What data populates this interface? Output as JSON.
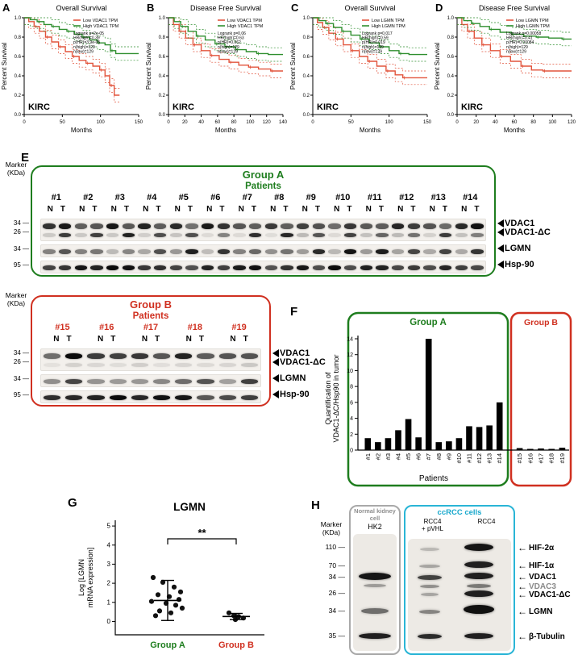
{
  "colors": {
    "low_tpm": "#e2543c",
    "high_tpm": "#2f8f2f",
    "group_a": "#1e7d1e",
    "group_b": "#d03020",
    "ccrcc_accent": "#2ab5d6",
    "normal_accent": "#8f8f8f",
    "band": "#0a0a0a"
  },
  "chart_data": [
    {
      "id": "A",
      "type": "line",
      "subtype": "kaplan-meier",
      "letter": "A",
      "title": "Overall Survival",
      "xlabel": "Months",
      "ylabel": "Percent Survival",
      "annotation": "KIRC",
      "xlim": [
        0,
        150
      ],
      "ylim": [
        0,
        1
      ],
      "xticks": [
        0,
        50,
        100,
        150
      ],
      "stats": [
        "Logrank p=2e-05",
        "HR(high)=0.39",
        "p(HR)=3.9e-05",
        "n(high)=129",
        "n(low)=129"
      ],
      "series": [
        {
          "name": "Low VDAC1 TPM",
          "color": "#e2543c",
          "x": [
            0,
            6,
            13,
            20,
            28,
            36,
            45,
            54,
            63,
            72,
            81,
            90,
            99,
            106,
            112,
            118,
            125
          ],
          "y": [
            1,
            0.96,
            0.91,
            0.86,
            0.8,
            0.75,
            0.7,
            0.65,
            0.6,
            0.56,
            0.53,
            0.5,
            0.46,
            0.4,
            0.3,
            0.2,
            0.2
          ]
        },
        {
          "name": "High VDAC1 TPM",
          "color": "#2f8f2f",
          "x": [
            0,
            8,
            17,
            26,
            36,
            46,
            56,
            66,
            76,
            86,
            96,
            106,
            113,
            120,
            150
          ],
          "y": [
            1,
            0.98,
            0.96,
            0.93,
            0.91,
            0.88,
            0.86,
            0.83,
            0.8,
            0.77,
            0.74,
            0.72,
            0.66,
            0.63,
            0.63
          ]
        }
      ]
    },
    {
      "id": "B",
      "type": "line",
      "subtype": "kaplan-meier",
      "letter": "B",
      "title": "Disease Free Survival",
      "xlabel": "Months",
      "ylabel": "Percent Survival",
      "annotation": "KIRC",
      "xlim": [
        0,
        140
      ],
      "ylim": [
        0,
        1
      ],
      "xticks": [
        0,
        20,
        40,
        60,
        80,
        100,
        120,
        140
      ],
      "stats": [
        "Logrank p=0.06",
        "HR(high)=0.63",
        "p(HR)=0.062",
        "n(high)=129",
        "n(low)=129"
      ],
      "series": [
        {
          "name": "Low VDAC1 TPM",
          "color": "#e2543c",
          "x": [
            0,
            6,
            13,
            21,
            30,
            40,
            51,
            62,
            74,
            86,
            98,
            110,
            125,
            140
          ],
          "y": [
            1,
            0.93,
            0.86,
            0.79,
            0.72,
            0.66,
            0.61,
            0.57,
            0.54,
            0.51,
            0.49,
            0.47,
            0.45,
            0.45
          ]
        },
        {
          "name": "High VDAC1 TPM",
          "color": "#2f8f2f",
          "x": [
            0,
            7,
            15,
            24,
            34,
            45,
            57,
            69,
            82,
            95,
            108,
            122,
            140
          ],
          "y": [
            1,
            0.96,
            0.91,
            0.86,
            0.81,
            0.77,
            0.73,
            0.7,
            0.67,
            0.65,
            0.63,
            0.62,
            0.62
          ]
        }
      ]
    },
    {
      "id": "C",
      "type": "line",
      "subtype": "kaplan-meier",
      "letter": "C",
      "title": "Overall Survival",
      "xlabel": "Months",
      "ylabel": "Percent Survival",
      "annotation": "KIRC",
      "xlim": [
        0,
        150
      ],
      "ylim": [
        0,
        1
      ],
      "xticks": [
        0,
        50,
        100,
        150
      ],
      "stats": [
        "Logrank p=0.017",
        "HR(high)=0.59",
        "p(HR)=0.019",
        "n(high)=129",
        "n(low)=129"
      ],
      "series": [
        {
          "name": "Low LGMN TPM",
          "color": "#e2543c",
          "x": [
            0,
            6,
            13,
            21,
            30,
            40,
            50,
            61,
            72,
            84,
            96,
            108,
            118,
            128,
            150
          ],
          "y": [
            1,
            0.95,
            0.9,
            0.84,
            0.78,
            0.72,
            0.66,
            0.6,
            0.55,
            0.5,
            0.45,
            0.41,
            0.38,
            0.38,
            0.38
          ]
        },
        {
          "name": "High LGMN TPM",
          "color": "#2f8f2f",
          "x": [
            0,
            8,
            17,
            27,
            38,
            50,
            62,
            74,
            87,
            100,
            113,
            126,
            150
          ],
          "y": [
            1,
            0.97,
            0.94,
            0.9,
            0.86,
            0.82,
            0.78,
            0.74,
            0.7,
            0.66,
            0.63,
            0.62,
            0.62
          ]
        }
      ]
    },
    {
      "id": "D",
      "type": "line",
      "subtype": "kaplan-meier",
      "letter": "D",
      "title": "Disease Free Survival",
      "xlabel": "Months",
      "ylabel": "Percent Survival",
      "annotation": "KIRC",
      "xlim": [
        0,
        120
      ],
      "ylim": [
        0,
        1
      ],
      "xticks": [
        0,
        20,
        40,
        60,
        80,
        100,
        120
      ],
      "stats": [
        "Logrank p=0.00058",
        "HR(high)=0.41",
        "p(HR)=0.00084",
        "n(high)=129",
        "n(low)=129"
      ],
      "series": [
        {
          "name": "Low LGMN TPM",
          "color": "#e2543c",
          "x": [
            0,
            5,
            11,
            18,
            26,
            35,
            45,
            56,
            67,
            78,
            90,
            103,
            120
          ],
          "y": [
            1,
            0.93,
            0.86,
            0.79,
            0.72,
            0.66,
            0.6,
            0.55,
            0.5,
            0.46,
            0.45,
            0.45,
            0.45
          ]
        },
        {
          "name": "High LGMN TPM",
          "color": "#2f8f2f",
          "x": [
            0,
            7,
            15,
            24,
            34,
            45,
            57,
            70,
            83,
            96,
            110,
            120
          ],
          "y": [
            1,
            0.97,
            0.94,
            0.91,
            0.88,
            0.85,
            0.83,
            0.81,
            0.8,
            0.79,
            0.78,
            0.78
          ]
        }
      ]
    },
    {
      "id": "F",
      "type": "bar",
      "letter": "F",
      "categories": [
        "#1",
        "#2",
        "#3",
        "#4",
        "#5",
        "#6",
        "#7",
        "#8",
        "#9",
        "#10",
        "#11",
        "#12",
        "#13",
        "#14",
        "#15",
        "#16",
        "#17",
        "#18",
        "#19"
      ],
      "values": [
        1.5,
        1.0,
        1.5,
        2.5,
        3.9,
        1.6,
        14,
        1.0,
        1.1,
        1.5,
        3.0,
        2.9,
        3.1,
        6.0,
        0.25,
        0.15,
        0.2,
        0.15,
        0.3
      ],
      "ylabel_lines": [
        "Quantification of",
        "VDAC1-ΔC/Hsp90 in tumor"
      ],
      "xlabel": "Patients",
      "ylim": [
        0,
        14
      ],
      "yticks": [
        0,
        2,
        4,
        6,
        8,
        10,
        12,
        14
      ],
      "groups": [
        {
          "label": "Group A",
          "count": 14,
          "color": "#1e7d1e"
        },
        {
          "label": "Group B",
          "count": 5,
          "color": "#d03020"
        }
      ]
    },
    {
      "id": "G",
      "type": "scatter",
      "letter": "G",
      "title": "LGMN",
      "ylabel_lines": [
        "Log [LGMN",
        "mRNA expression]"
      ],
      "ylim": [
        -0.7,
        5.3
      ],
      "yticks": [
        0,
        1,
        2,
        3,
        4,
        5
      ],
      "significance": "**",
      "groups": [
        {
          "label": "Group A",
          "color": "#1e7d1e",
          "mean": 1.1,
          "sd": 1.05,
          "points": [
            2.3,
            2.05,
            1.8,
            1.55,
            1.4,
            1.3,
            1.15,
            1.05,
            0.95,
            0.85,
            0.7,
            0.55,
            0.45,
            0.3
          ]
        },
        {
          "label": "Group B",
          "color": "#d03020",
          "mean": 0.26,
          "sd": 0.16,
          "points": [
            0.45,
            0.3,
            0.25,
            0.18,
            0.1
          ]
        }
      ]
    }
  ],
  "panel_e": {
    "letter": "E",
    "marker_label": [
      "Marker",
      "(KDa)"
    ],
    "group_a": {
      "title": "Group A",
      "subtitle": "Patients",
      "patients": [
        "#1",
        "#2",
        "#3",
        "#4",
        "#5",
        "#6",
        "#7",
        "#8",
        "#9",
        "#10",
        "#11",
        "#12",
        "#13",
        "#14"
      ],
      "lane_labels": [
        "N",
        "T"
      ]
    },
    "group_b": {
      "title": "Group B",
      "subtitle": "Patients",
      "patients": [
        "#15",
        "#16",
        "#17",
        "#18",
        "#19"
      ],
      "lane_labels": [
        "N",
        "T"
      ]
    },
    "rows": [
      {
        "marker": "34",
        "label": "VDAC1"
      },
      {
        "marker": "26",
        "label": "VDAC1-ΔC"
      },
      {
        "marker": "34",
        "label": "LGMN"
      },
      {
        "marker": "95",
        "label": "Hsp-90"
      }
    ]
  },
  "panel_h": {
    "letter": "H",
    "marker_label": [
      "Marker",
      "(KDa)"
    ],
    "normal_box": {
      "header_lines": [
        "Normal kidney",
        "cell"
      ],
      "column": "HK2"
    },
    "ccrcc_box": {
      "header": "ccRCC cells",
      "column_lines": [
        [
          "RCC4",
          "+ pVHL"
        ],
        [
          "RCC4"
        ]
      ]
    },
    "markers": [
      "110",
      "70",
      "34",
      "26",
      "34",
      "35"
    ],
    "targets": [
      {
        "label": "HIF-2α",
        "color": "#000000"
      },
      {
        "label": "HIF-1α",
        "color": "#000000"
      },
      {
        "label": "VDAC1",
        "color": "#000000"
      },
      {
        "label": "VDAC3",
        "color": "#8a8a8a"
      },
      {
        "label": "VDAC1-ΔC",
        "color": "#000000"
      },
      {
        "label": "LGMN",
        "color": "#000000"
      },
      {
        "label": "β-Tubulin",
        "color": "#000000"
      }
    ]
  }
}
